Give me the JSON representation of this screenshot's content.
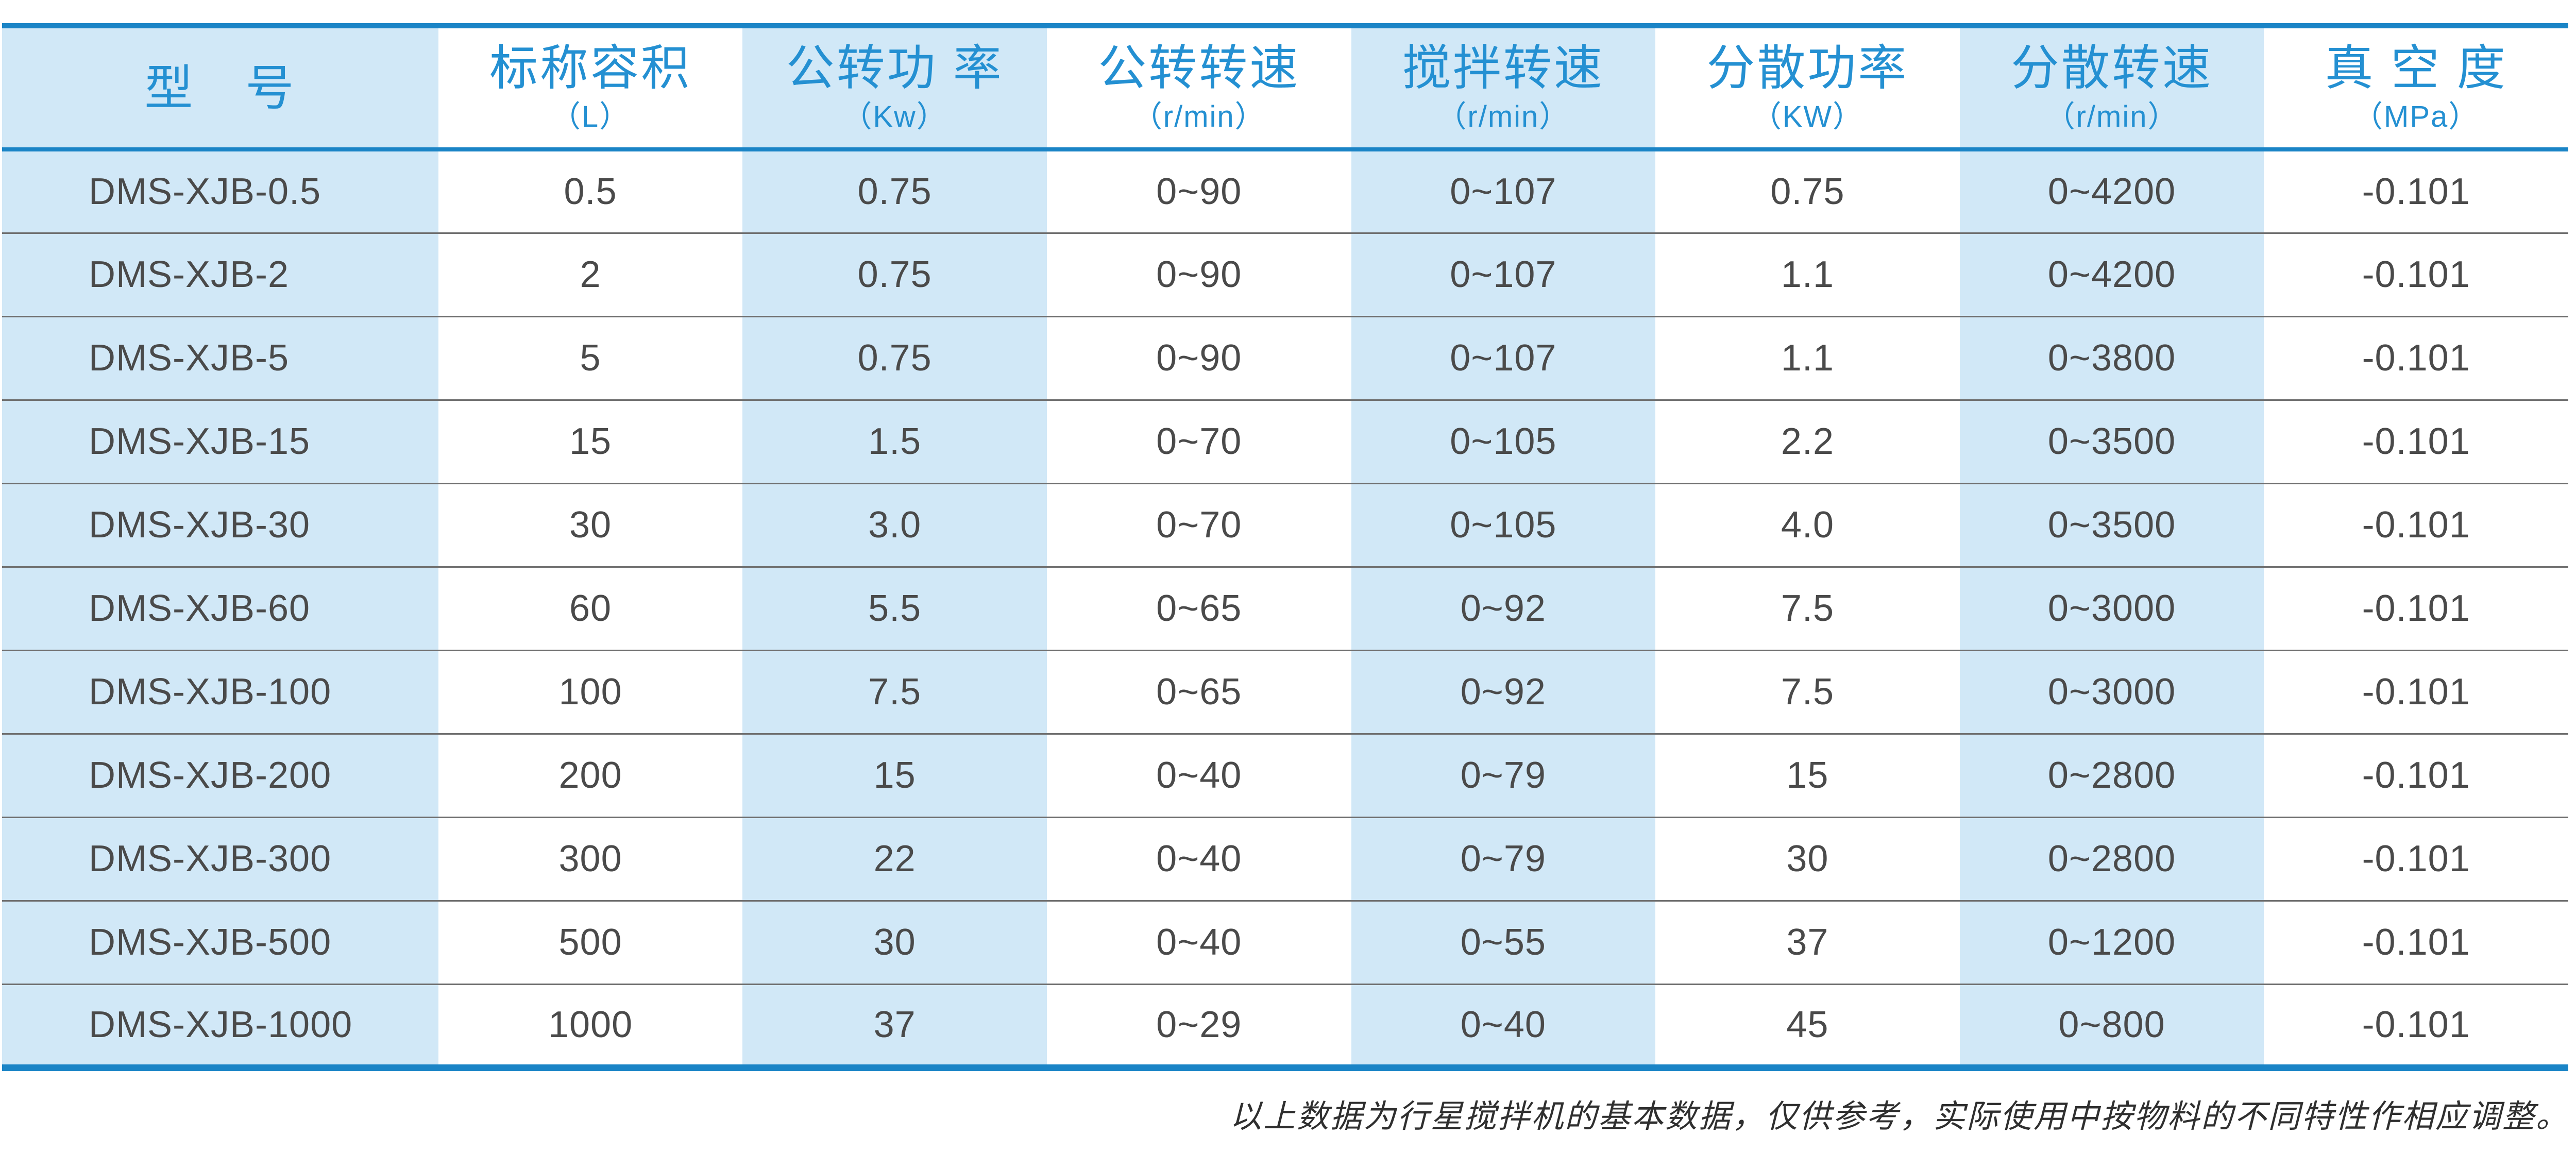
{
  "colors": {
    "accent": "#1a84c6",
    "column_tint": "#d1e8f7",
    "row_divider": "#6f6f6f",
    "header_text": "#2490d2",
    "cell_text": "#4a4a4a",
    "footnote_text": "#2f2f2f"
  },
  "table": {
    "columns": [
      {
        "title": "型　号",
        "unit": "",
        "tone": "blue"
      },
      {
        "title": "标称容积",
        "unit": "（L）",
        "tone": "white"
      },
      {
        "title": "公转功 率",
        "unit": "（Kw）",
        "tone": "blue"
      },
      {
        "title": "公转转速",
        "unit": "（r/min）",
        "tone": "white"
      },
      {
        "title": "搅拌转速",
        "unit": "（r/min）",
        "tone": "blue"
      },
      {
        "title": "分散功率",
        "unit": "（KW）",
        "tone": "white"
      },
      {
        "title": "分散转速",
        "unit": "（r/min）",
        "tone": "blue"
      },
      {
        "title": "真 空 度",
        "unit": "（MPa）",
        "tone": "white"
      }
    ],
    "rows": [
      [
        "DMS-XJB-0.5",
        "0.5",
        "0.75",
        "0~90",
        "0~107",
        "0.75",
        "0~4200",
        "-0.101"
      ],
      [
        "DMS-XJB-2",
        "2",
        "0.75",
        "0~90",
        "0~107",
        "1.1",
        "0~4200",
        "-0.101"
      ],
      [
        "DMS-XJB-5",
        "5",
        "0.75",
        "0~90",
        "0~107",
        "1.1",
        "0~3800",
        "-0.101"
      ],
      [
        "DMS-XJB-15",
        "15",
        "1.5",
        "0~70",
        "0~105",
        "2.2",
        "0~3500",
        "-0.101"
      ],
      [
        "DMS-XJB-30",
        "30",
        "3.0",
        "0~70",
        "0~105",
        "4.0",
        "0~3500",
        "-0.101"
      ],
      [
        "DMS-XJB-60",
        "60",
        "5.5",
        "0~65",
        "0~92",
        "7.5",
        "0~3000",
        "-0.101"
      ],
      [
        "DMS-XJB-100",
        "100",
        "7.5",
        "0~65",
        "0~92",
        "7.5",
        "0~3000",
        "-0.101"
      ],
      [
        "DMS-XJB-200",
        "200",
        "15",
        "0~40",
        "0~79",
        "15",
        "0~2800",
        "-0.101"
      ],
      [
        "DMS-XJB-300",
        "300",
        "22",
        "0~40",
        "0~79",
        "30",
        "0~2800",
        "-0.101"
      ],
      [
        "DMS-XJB-500",
        "500",
        "30",
        "0~40",
        "0~55",
        "37",
        "0~1200",
        "-0.101"
      ],
      [
        "DMS-XJB-1000",
        "1000",
        "37",
        "0~29",
        "0~40",
        "45",
        "0~800",
        "-0.101"
      ]
    ]
  },
  "footnote": "以上数据为行星搅拌机的基本数据，仅供参考，实际使用中按物料的不同特性作相应调整。"
}
